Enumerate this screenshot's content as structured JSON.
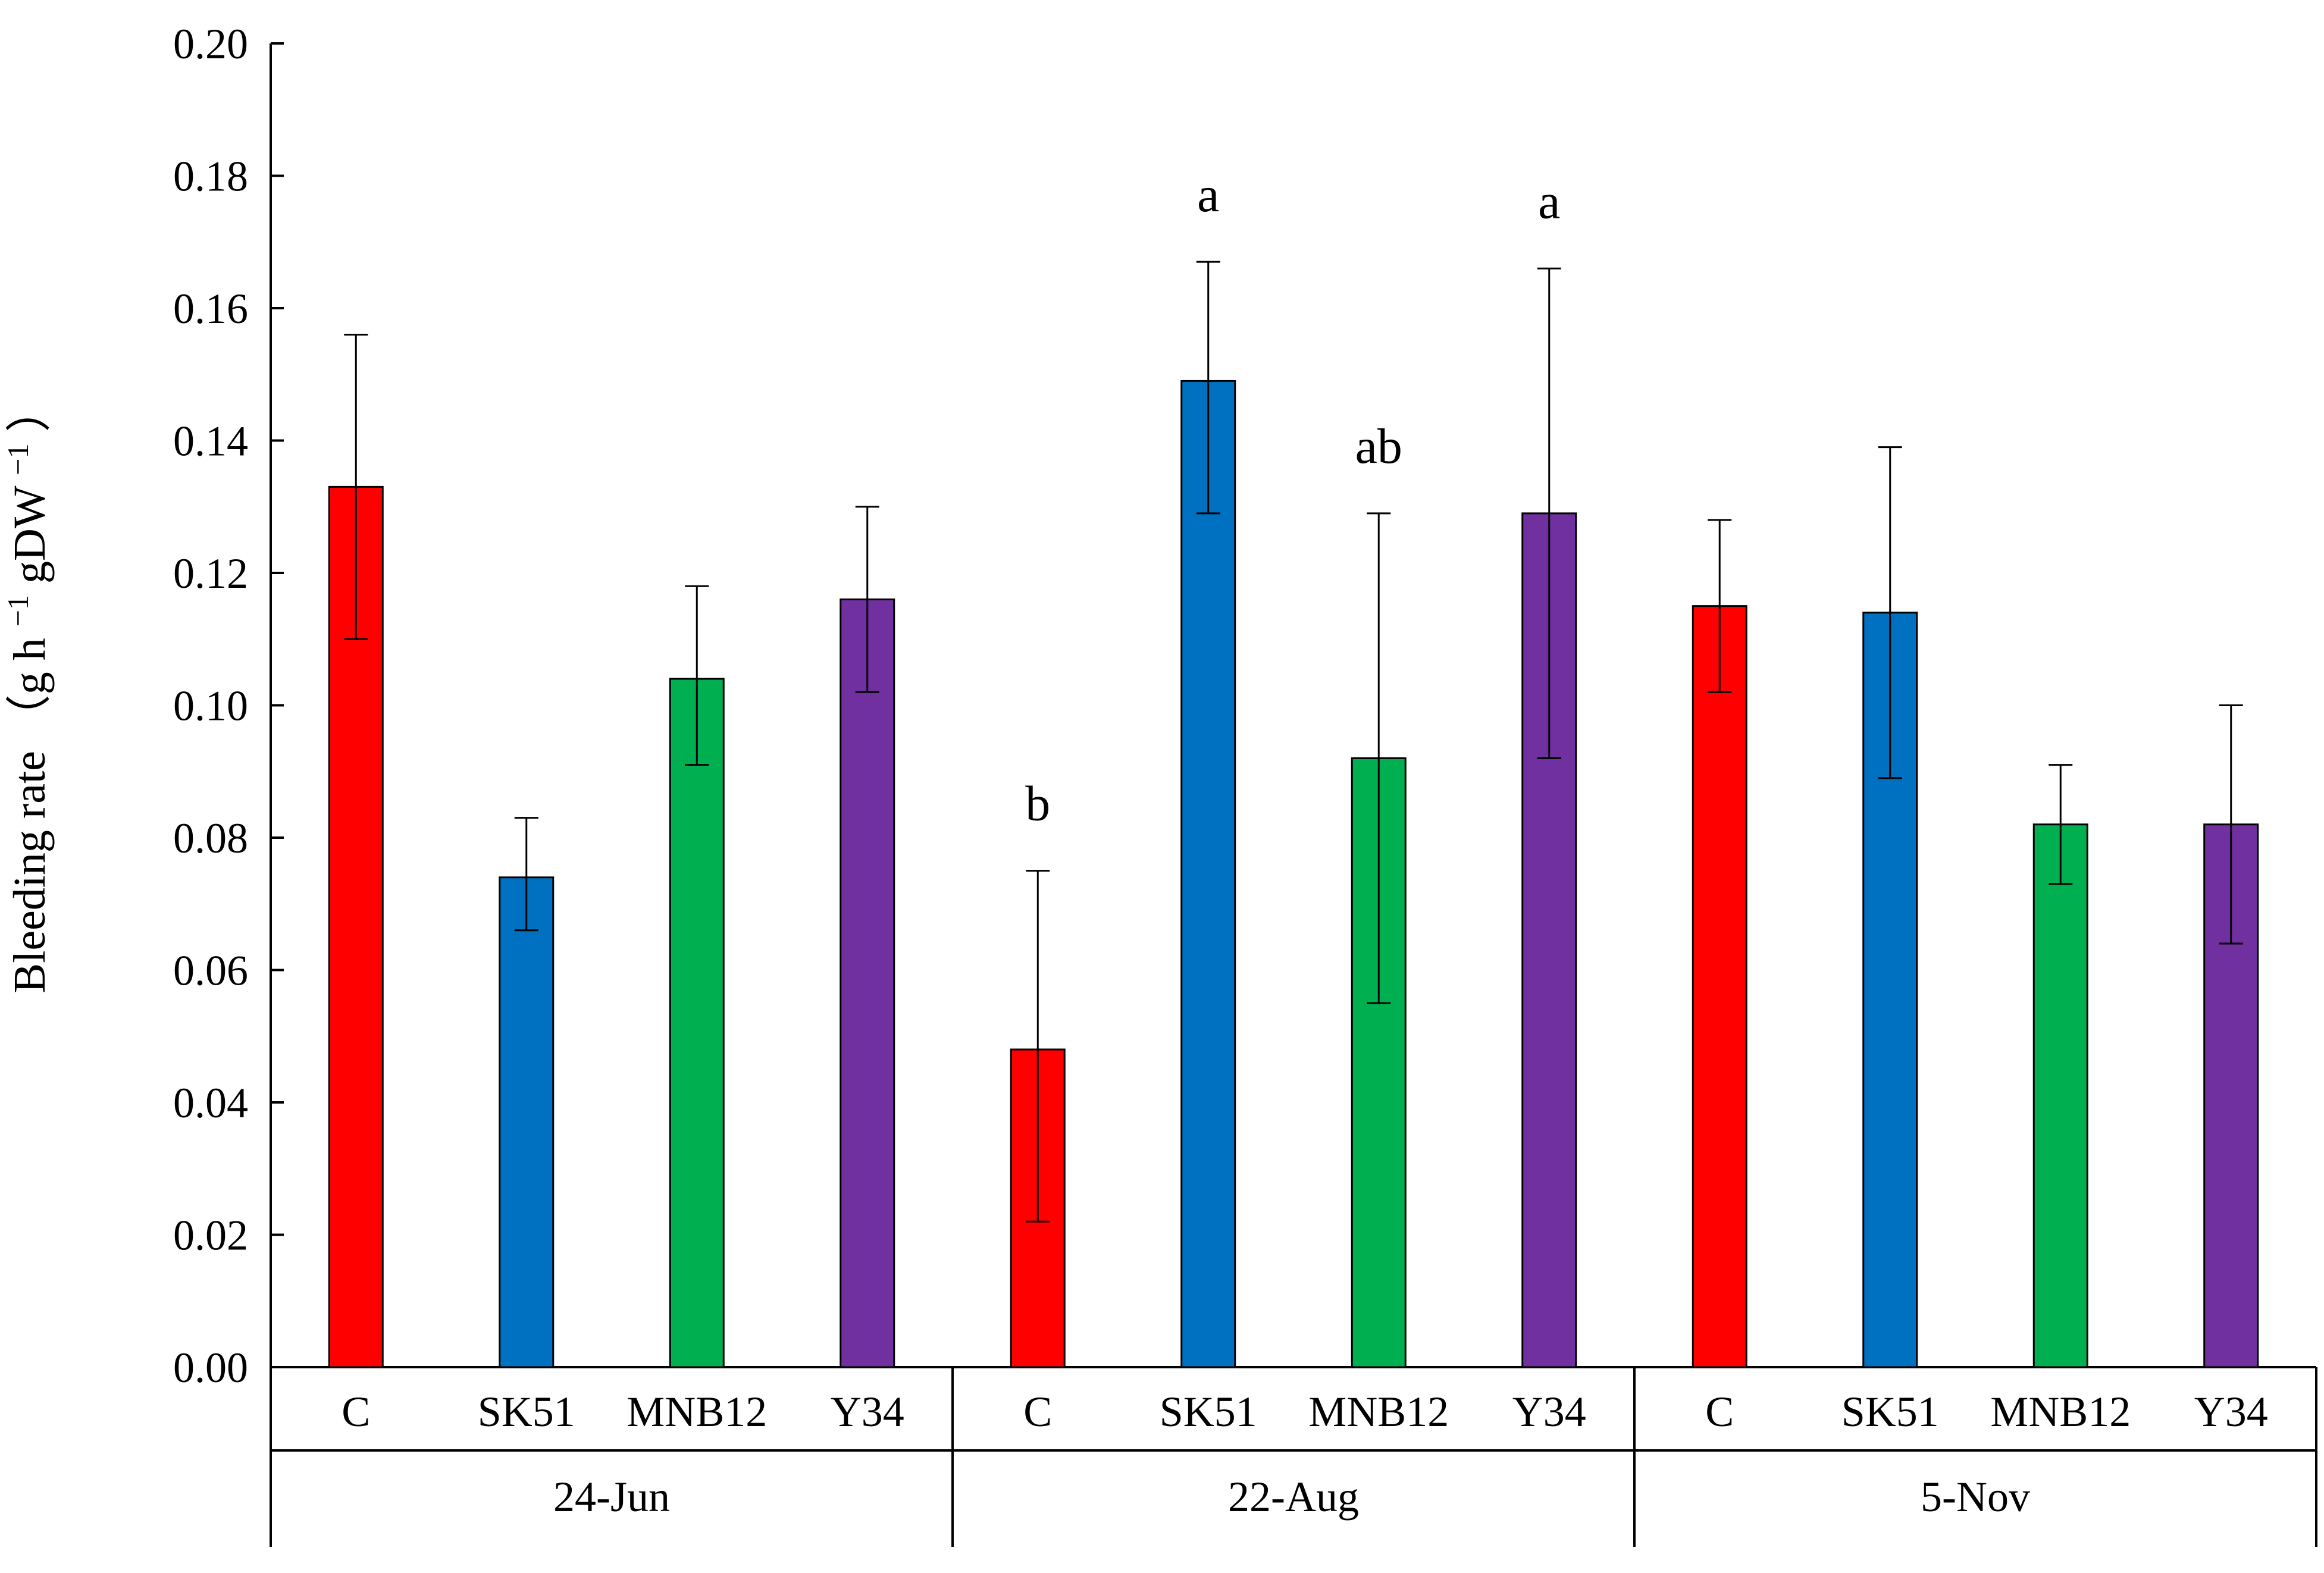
{
  "chart_data": {
    "type": "bar",
    "title": "",
    "xlabel": "",
    "ylabel": {
      "main": "Bleeding rate",
      "unit_open": "（g h",
      "unit_sup1": "−1",
      "unit_mid": " gDW",
      "unit_sup2": "−1",
      "unit_close": "）"
    },
    "ylim": [
      0,
      0.2
    ],
    "yticks": [
      "0.00",
      "0.02",
      "0.04",
      "0.06",
      "0.08",
      "0.10",
      "0.12",
      "0.14",
      "0.16",
      "0.18",
      "0.20"
    ],
    "grid": false,
    "legend": "none",
    "treatments": [
      "C",
      "SK51",
      "MNB12",
      "Y34"
    ],
    "colors": {
      "C": "#ff0000",
      "SK51": "#0070c0",
      "MNB12": "#00b050",
      "Y34": "#7030a0"
    },
    "groups": [
      {
        "name": "24-Jun",
        "bars": [
          {
            "label": "C",
            "value": 0.133,
            "error_low": 0.11,
            "error_high": 0.156,
            "sig": ""
          },
          {
            "label": "SK51",
            "value": 0.074,
            "error_low": 0.066,
            "error_high": 0.083,
            "sig": ""
          },
          {
            "label": "MNB12",
            "value": 0.104,
            "error_low": 0.091,
            "error_high": 0.118,
            "sig": ""
          },
          {
            "label": "Y34",
            "value": 0.116,
            "error_low": 0.102,
            "error_high": 0.13,
            "sig": ""
          }
        ]
      },
      {
        "name": "22-Aug",
        "bars": [
          {
            "label": "C",
            "value": 0.048,
            "error_low": 0.022,
            "error_high": 0.075,
            "sig": "b"
          },
          {
            "label": "SK51",
            "value": 0.149,
            "error_low": 0.129,
            "error_high": 0.167,
            "sig": "a"
          },
          {
            "label": "MNB12",
            "value": 0.092,
            "error_low": 0.055,
            "error_high": 0.129,
            "sig": "ab"
          },
          {
            "label": "Y34",
            "value": 0.129,
            "error_low": 0.092,
            "error_high": 0.166,
            "sig": "a"
          }
        ]
      },
      {
        "name": "5-Nov",
        "bars": [
          {
            "label": "C",
            "value": 0.115,
            "error_low": 0.102,
            "error_high": 0.128,
            "sig": ""
          },
          {
            "label": "SK51",
            "value": 0.114,
            "error_low": 0.089,
            "error_high": 0.139,
            "sig": ""
          },
          {
            "label": "MNB12",
            "value": 0.082,
            "error_low": 0.073,
            "error_high": 0.091,
            "sig": ""
          },
          {
            "label": "Y34",
            "value": 0.082,
            "error_low": 0.064,
            "error_high": 0.1,
            "sig": ""
          }
        ]
      }
    ]
  }
}
